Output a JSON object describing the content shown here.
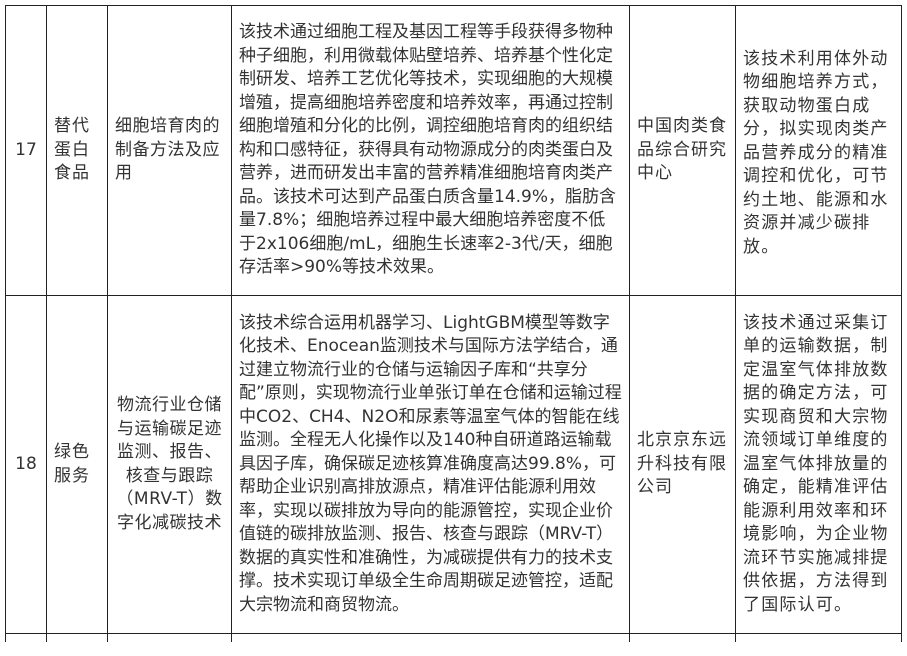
{
  "rows": [
    {
      "no": "17",
      "category": "替代蛋白食品",
      "name": "细胞培育肉的制备方法及应用",
      "description": "该技术通过细胞工程及基因工程等手段获得多物种种子细胞，利用微载体贴壁培养、培养基个性化定制研发、培养工艺优化等技术，实现细胞的大规模增殖，提高细胞培养密度和培养效率，再通过控制细胞增殖和分化的比例，调控细胞培育肉的组织结构和口感特征，获得具有动物源成分的肉类蛋白及营养，进而研发出丰富的营养精准细胞培育肉类产品。该技术可达到产品蛋白质含量14.9%，脂肪含量7.8%；细胞培养过程中最大细胞培养密度不低于2x106细胞/mL，细胞生长速率2-3代/天，细胞存活率>90%等技术效果。",
      "organization": "中国肉类食品综合研究中心",
      "benefit": "该技术利用体外动物细胞培养方式，获取动物蛋白成分，拟实现肉类产品营养成分的精准调控和优化，可节约土地、能源和水资源并减少碳排放。"
    },
    {
      "no": "18",
      "category": "绿色服务",
      "name": "物流行业仓储与运输碳足迹监测、报告、核查与跟踪（MRV-T）数字化减碳技术",
      "description": "该技术综合运用机器学习、LightGBM模型等数字化技术、Enocean监测技术与国际方法学结合，通过建立物流行业的仓储与运输因子库和“共享分配”原则，实现物流行业单张订单在仓储和运输过程中CO2、CH4、N2O和尿素等温室气体的智能在线监测。全程无人化操作以及140种自研道路运输载具因子库，确保碳足迹核算准确度高达99.8%，可帮助企业识别高排放源点，精准评估能源利用效率，实现以碳排放为导向的能源管控，实现企业价值链的碳排放监测、报告、核查与跟踪（MRV-T）数据的真实性和准确性，为减碳提供有力的技术支撑。技术实现订单级全生命周期碳足迹管控，适配大宗物流和商贸物流。",
      "organization": "北京京东远升科技有限公司",
      "benefit": "该技术通过采集订单的运输数据，制定温室气体排放数据的确定方法，可实现商贸和大宗物流领域订单维度的温室气体排放量的确定，能精准评估能源利用效率和环境影响，为企业物流环节实施减排提供依据，方法得到了国际认可。"
    }
  ]
}
